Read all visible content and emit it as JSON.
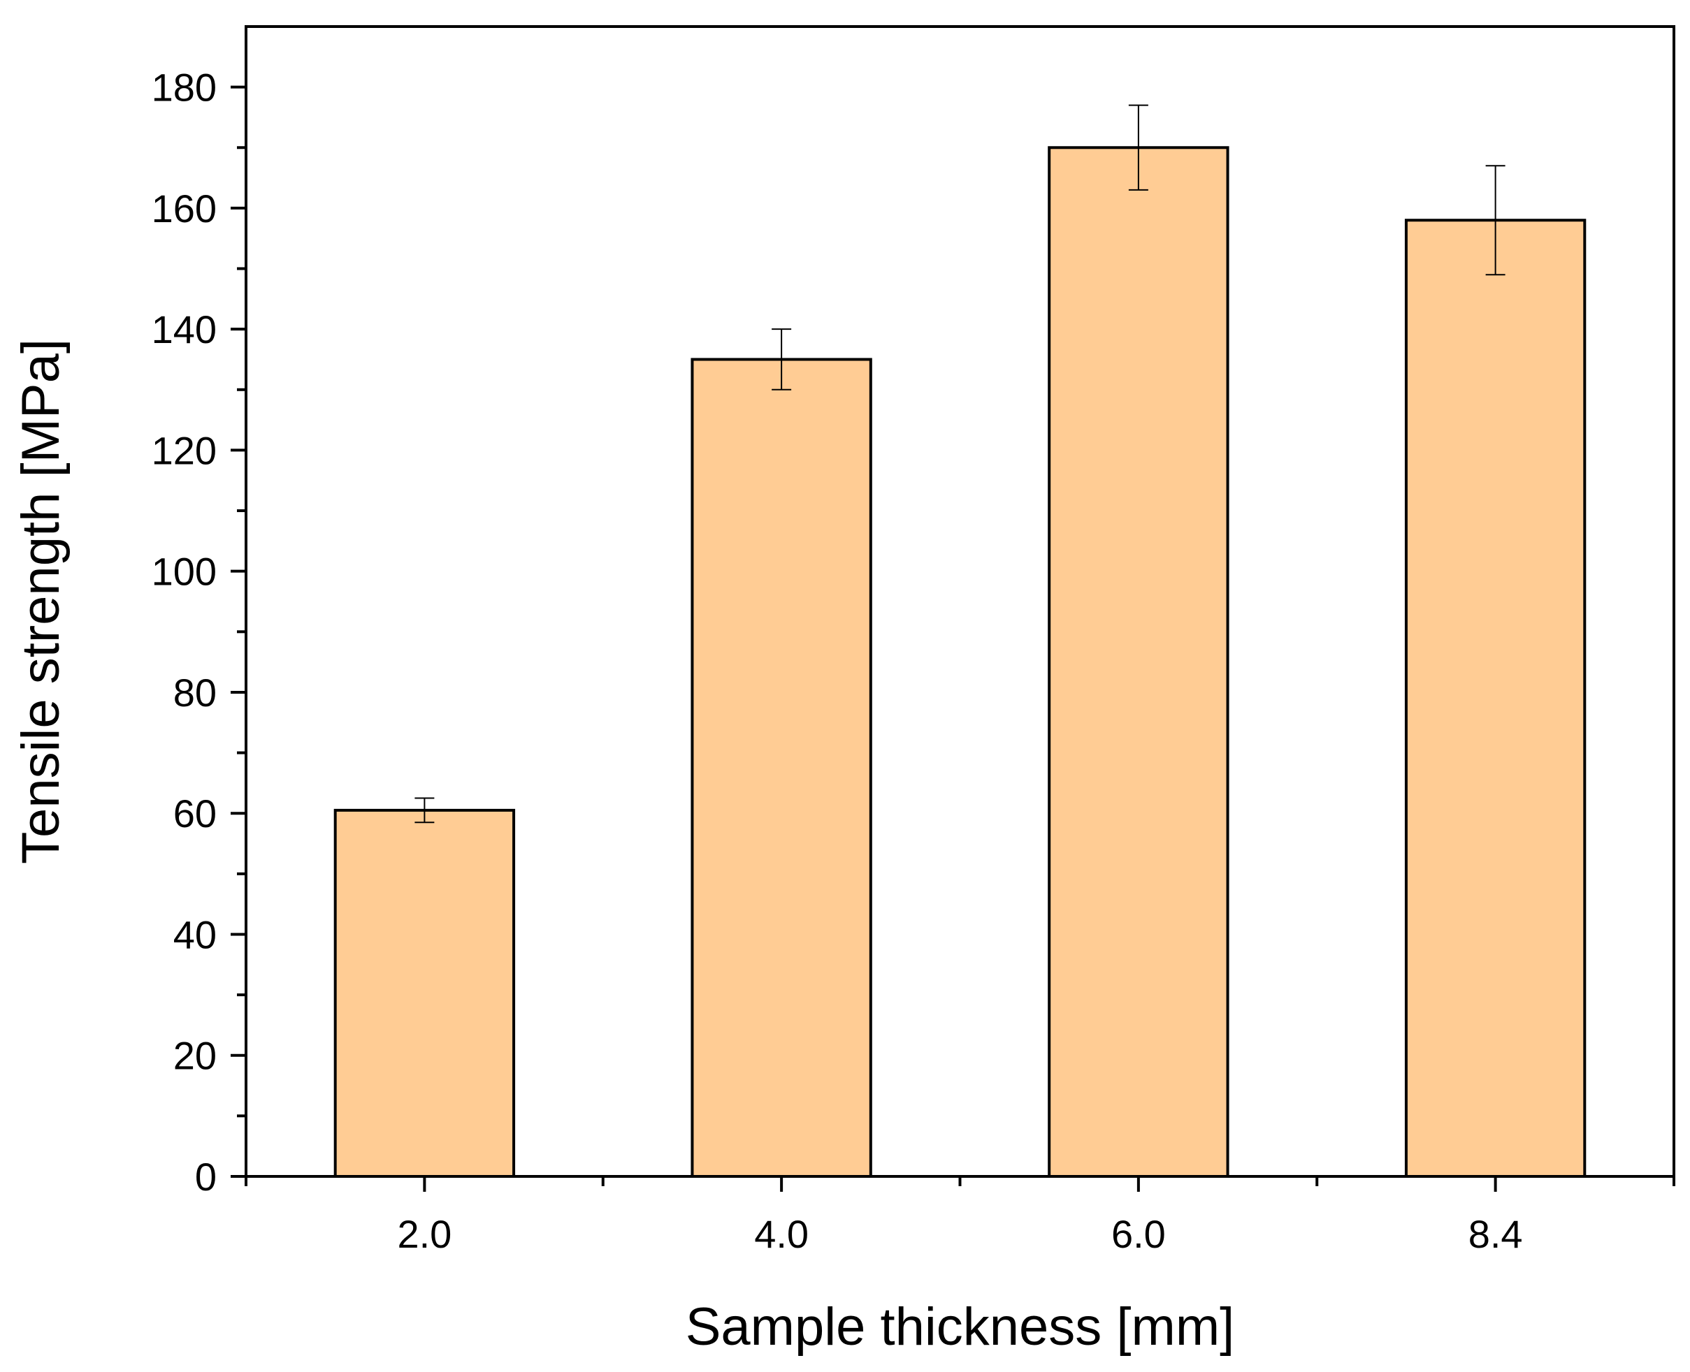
{
  "chart_data": {
    "type": "bar",
    "title": "",
    "xlabel": "Sample thickness [mm]",
    "ylabel": "Tensile strength [MPa]",
    "categories": [
      "2.0",
      "4.0",
      "6.0",
      "8.4"
    ],
    "values": [
      60.5,
      135,
      170,
      158
    ],
    "errors": [
      2,
      5,
      7,
      9
    ],
    "ylim": [
      0,
      190
    ],
    "yticks": [
      0,
      20,
      40,
      60,
      80,
      100,
      120,
      140,
      160,
      180
    ],
    "grid": false,
    "legend": "none",
    "bar_color": "#FFCC94",
    "edge_color": "#000000"
  }
}
